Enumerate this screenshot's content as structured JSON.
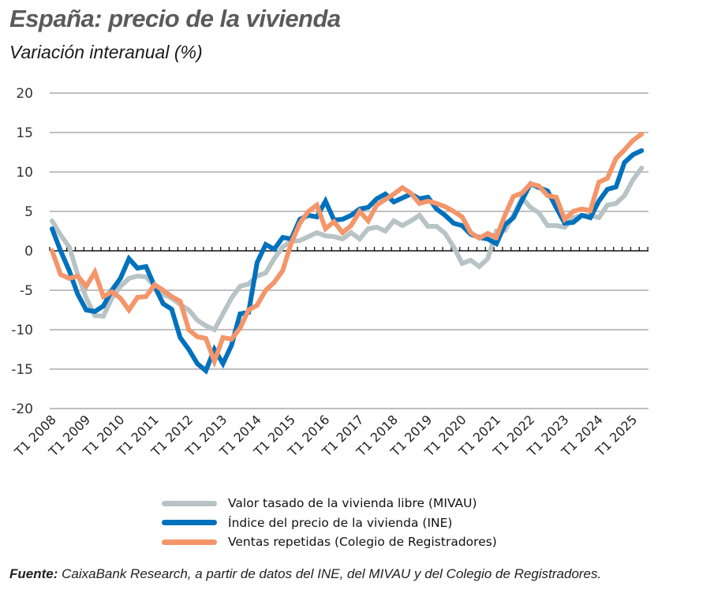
{
  "header": {
    "title": "España: precio de la vivienda",
    "subtitle": "Variación interanual (%)"
  },
  "source": {
    "label": "Fuente:",
    "text": " CaixaBank Research, a partir de datos del INE, del MIVAU y del Colegio de Registradores."
  },
  "colors": {
    "mivau": "#b8c3c5",
    "ine": "#0071bc",
    "registradores": "#f4956a",
    "grid": "#9a9a9a",
    "axis": "#111111"
  },
  "chart_data": {
    "type": "line",
    "title": "España: precio de la vivienda",
    "subtitle": "Variación interanual (%)",
    "xlabel": "",
    "ylabel": "",
    "ylim": [
      -20,
      20
    ],
    "yticks": [
      20,
      15,
      10,
      5,
      0,
      -5,
      -10,
      -15,
      -20
    ],
    "grid": true,
    "legend_position": "bottom",
    "x_tick_labels": [
      "T1 2008",
      "T1 2009",
      "T1 2010",
      "T1 2011",
      "T1 2012",
      "T1 2013",
      "T1 2014",
      "T1 2015",
      "T1 2016",
      "T1 2017",
      "T1 2018",
      "T1 2019",
      "T1 2020",
      "T1 2021",
      "T1 2022",
      "T1 2023",
      "T1 2024",
      "T1 2025"
    ],
    "x_start": "T1 2008",
    "x_end": "T2 2025",
    "frequency": "quarterly",
    "series": [
      {
        "name": "Valor tasado de la vivienda libre (MIVAU)",
        "color": "#b8c3c5",
        "values": [
          3.8,
          2.0,
          0.5,
          -3.0,
          -6.0,
          -8.2,
          -8.3,
          -6.0,
          -4.5,
          -3.5,
          -3.2,
          -3.3,
          -4.5,
          -5.5,
          -6.0,
          -6.8,
          -7.5,
          -8.8,
          -9.5,
          -10.0,
          -8.0,
          -6.0,
          -4.5,
          -4.2,
          -3.2,
          -2.8,
          -1.0,
          0.5,
          1.2,
          1.3,
          1.8,
          2.3,
          1.9,
          1.8,
          1.5,
          2.3,
          1.5,
          2.8,
          3.0,
          2.5,
          3.8,
          3.2,
          3.8,
          4.5,
          3.1,
          3.1,
          2.2,
          0.5,
          -1.6,
          -1.2,
          -2.0,
          -1.0,
          2.5,
          2.6,
          4.5,
          6.7,
          5.5,
          4.8,
          3.2,
          3.2,
          3.0,
          4.2,
          4.5,
          4.5,
          4.2,
          5.8,
          6.0,
          7.0,
          9.0,
          10.5
        ]
      },
      {
        "name": "Índice del precio de la vivienda (INE)",
        "color": "#0071bc",
        "values": [
          2.8,
          0.0,
          -2.5,
          -5.5,
          -7.5,
          -7.7,
          -7.0,
          -5.0,
          -3.5,
          -1.0,
          -2.2,
          -2.0,
          -4.5,
          -6.7,
          -7.4,
          -11.0,
          -12.5,
          -14.3,
          -15.2,
          -12.5,
          -14.3,
          -12.0,
          -8.0,
          -7.8,
          -1.5,
          0.8,
          0.2,
          1.7,
          1.5,
          4.0,
          4.5,
          4.3,
          6.3,
          3.9,
          4.0,
          4.5,
          5.3,
          5.5,
          6.6,
          7.2,
          6.2,
          6.7,
          7.2,
          6.6,
          6.8,
          5.3,
          4.5,
          3.5,
          3.2,
          2.1,
          1.7,
          1.5,
          0.9,
          3.3,
          4.2,
          6.4,
          8.5,
          8.0,
          7.6,
          5.5,
          3.5,
          3.6,
          4.5,
          4.2,
          6.3,
          7.8,
          8.1,
          11.2,
          12.2,
          12.7
        ]
      },
      {
        "name": "Ventas repetidas (Colegio de Registradores)",
        "color": "#f4956a",
        "values": [
          0.0,
          -3.0,
          -3.5,
          -3.2,
          -4.5,
          -2.7,
          -5.8,
          -5.2,
          -6.0,
          -7.5,
          -5.9,
          -5.8,
          -4.3,
          -5.0,
          -5.8,
          -6.4,
          -10.0,
          -10.9,
          -11.1,
          -14.0,
          -11.0,
          -11.2,
          -9.8,
          -7.5,
          -6.9,
          -5.0,
          -4.0,
          -2.5,
          1.0,
          3.5,
          5.0,
          5.8,
          2.8,
          3.7,
          2.3,
          3.2,
          5.0,
          3.8,
          5.8,
          6.5,
          7.2,
          8.0,
          7.3,
          6.0,
          6.3,
          6.0,
          5.6,
          5.0,
          4.3,
          2.3,
          1.6,
          2.2,
          1.7,
          4.5,
          6.9,
          7.3,
          8.5,
          8.2,
          7.0,
          6.8,
          4.0,
          5.0,
          5.3,
          5.1,
          8.7,
          9.2,
          11.7,
          12.8,
          14.0,
          14.8
        ]
      }
    ]
  },
  "legend": {
    "items": [
      {
        "label": "Valor tasado de la vivienda libre (MIVAU)",
        "color": "#b8c3c5"
      },
      {
        "label": "Índice del precio de la vivienda (INE)",
        "color": "#0071bc"
      },
      {
        "label": "Ventas repetidas (Colegio de Registradores)",
        "color": "#f4956a"
      }
    ]
  }
}
